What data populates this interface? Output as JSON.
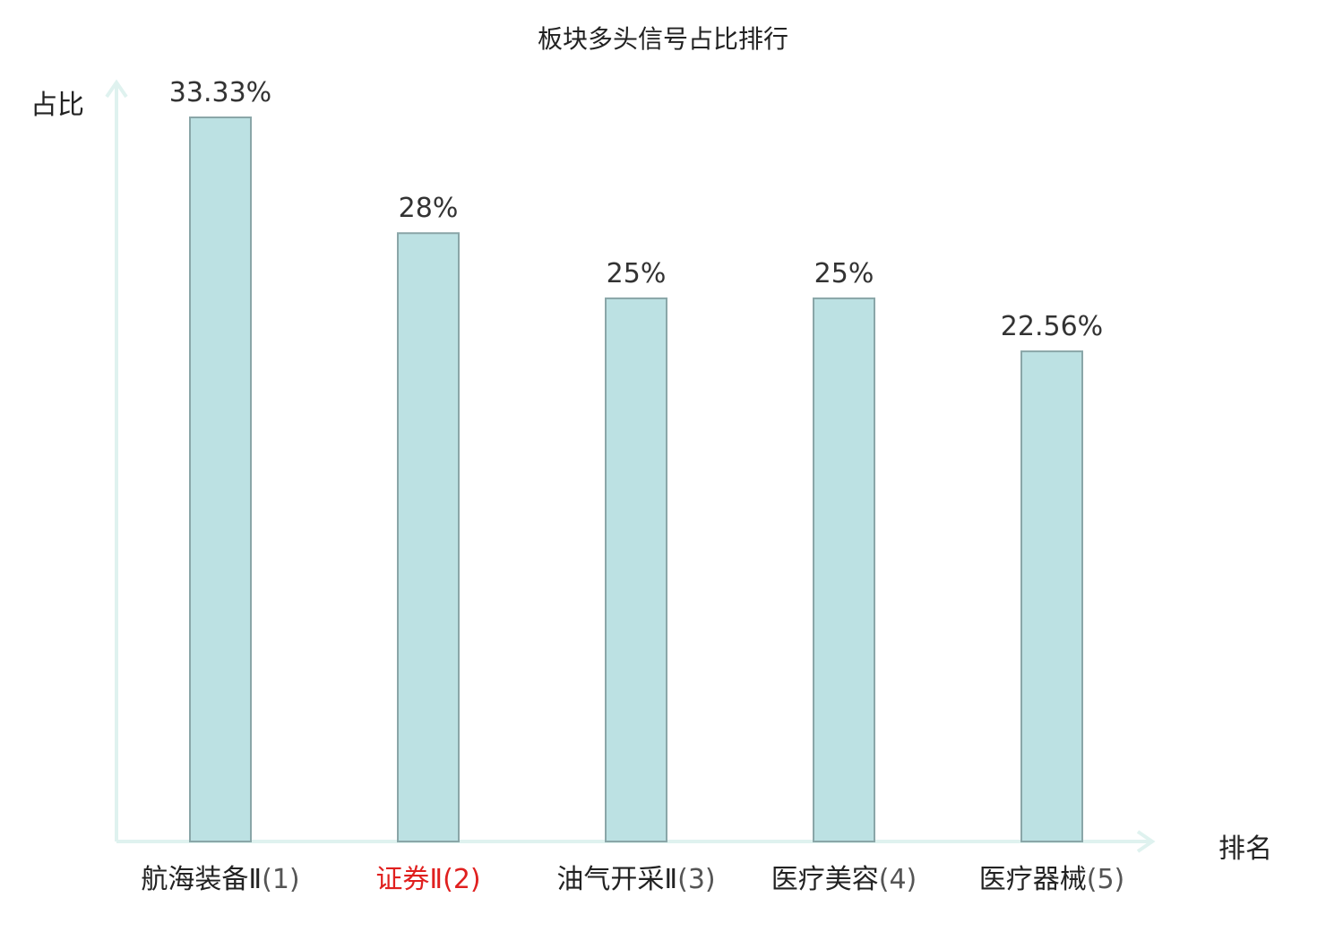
{
  "chart_data": {
    "type": "bar",
    "title": "板块多头信号占比排行",
    "xlabel": "排名",
    "ylabel": "占比",
    "ylim": [
      0,
      33.33
    ],
    "grid": false,
    "categories": [
      "航海装备Ⅱ",
      "证券Ⅱ",
      "油气开采Ⅱ",
      "医疗美容",
      "医疗器械"
    ],
    "ranks": [
      "(1)",
      "(2)",
      "(3)",
      "(4)",
      "(5)"
    ],
    "values": [
      33.33,
      28,
      25,
      25,
      22.56
    ],
    "value_labels": [
      "33.33%",
      "28%",
      "25%",
      "25%",
      "22.56%"
    ],
    "highlight_index": 1,
    "colors": {
      "bar_fill": "#bce1e3",
      "bar_stroke": "#8aa6a8",
      "axis": "#dff2ef",
      "highlight": "#e0201f"
    }
  }
}
